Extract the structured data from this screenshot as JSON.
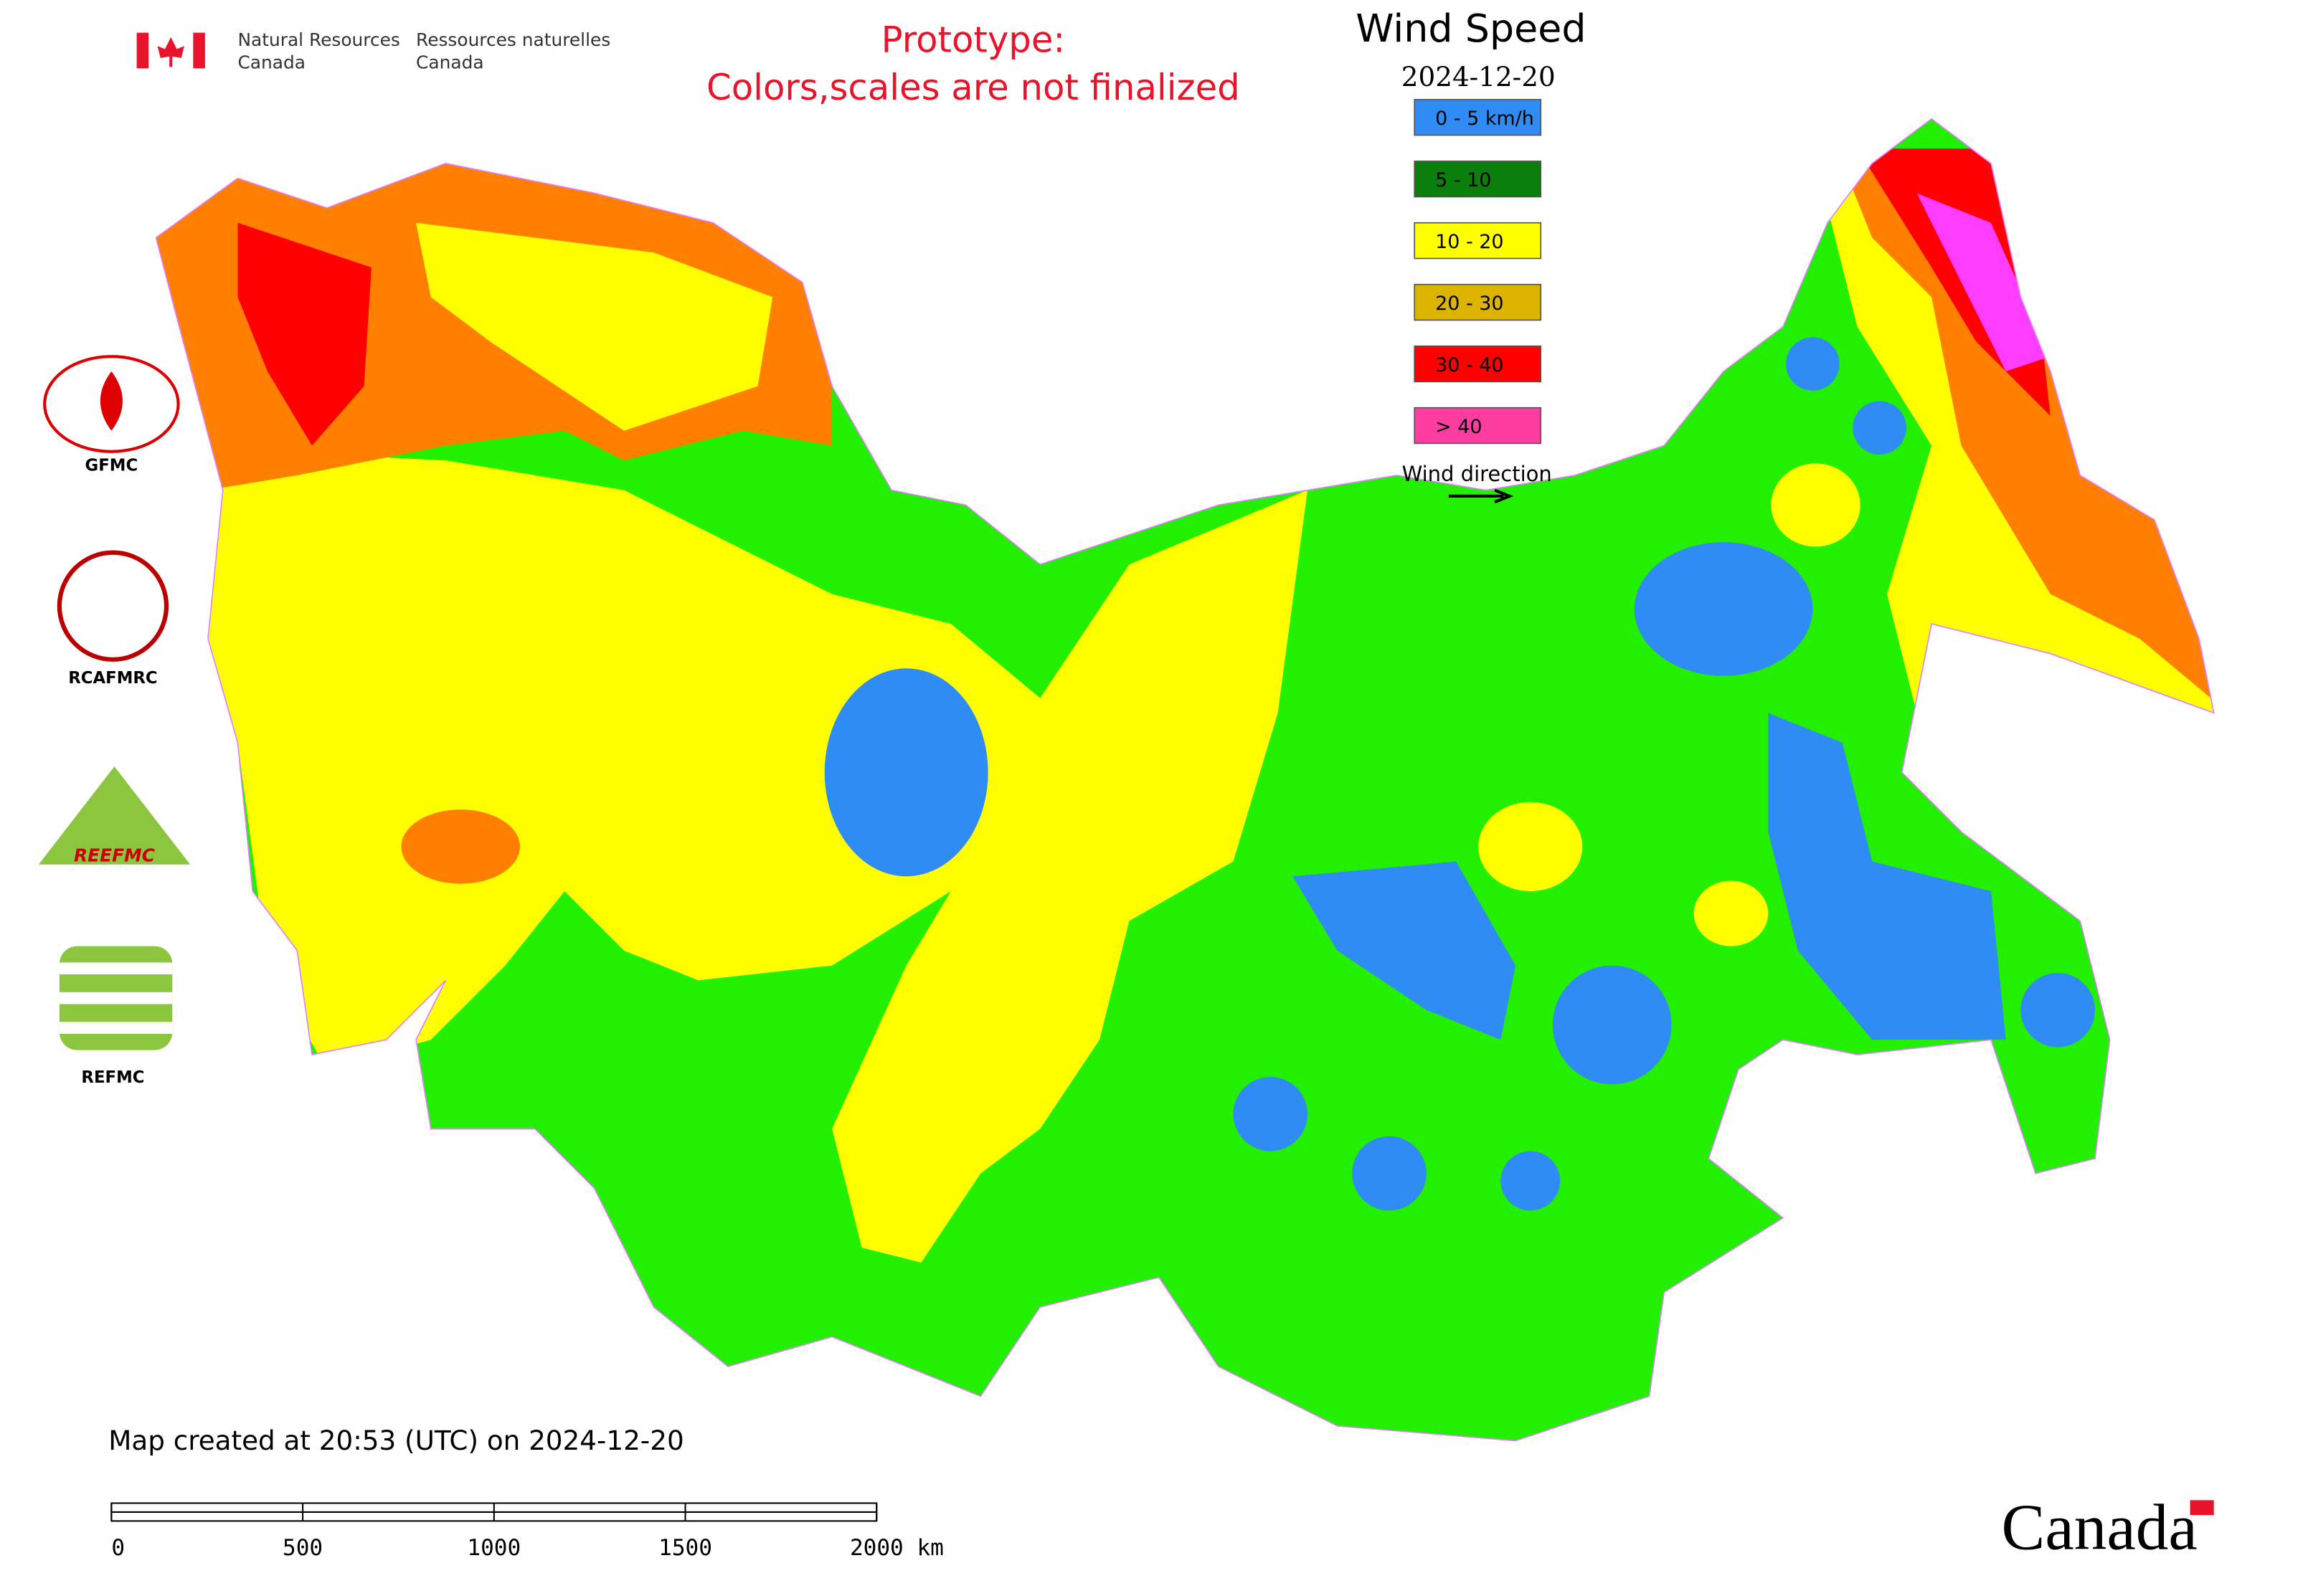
{
  "header": {
    "agency_en": [
      "Natural Resources",
      "Canada"
    ],
    "agency_fr": [
      "Ressources naturelles",
      "Canada"
    ]
  },
  "notice": [
    "Prototype:",
    "Colors,scales are not finalized"
  ],
  "legend": {
    "title": "Wind Speed",
    "date": "2024-12-20",
    "items": [
      {
        "label": "0 - 5 km/h",
        "color": "#2f8cf5"
      },
      {
        "label": "5 - 10",
        "color": "#0a7d0a"
      },
      {
        "label": "10 - 20",
        "color": "#ffff00"
      },
      {
        "label": "20 - 30",
        "color": "#dcb400"
      },
      {
        "label": "30 - 40",
        "color": "#ff0000"
      },
      {
        "label": "> 40",
        "color": "#ff3ca0"
      }
    ],
    "direction_label": "Wind direction"
  },
  "logos": [
    "GFMC",
    "RCAFMRC",
    "REEFMC",
    "REFMC"
  ],
  "footer": {
    "created": "Map created at 20:53 (UTC) on 2024-12-20",
    "scale_labels": [
      "0",
      "500",
      "1000",
      "1500",
      "2000 km"
    ],
    "wordmark": "Canada"
  }
}
